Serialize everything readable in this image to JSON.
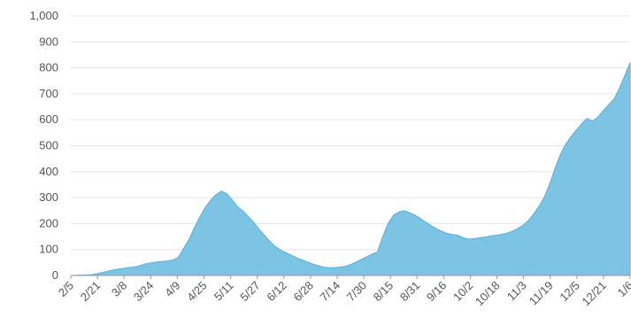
{
  "chart_data": {
    "type": "area",
    "title": "",
    "xlabel": "",
    "ylabel": "",
    "ylim": [
      0,
      1000
    ],
    "yticks": [
      0,
      100,
      200,
      300,
      400,
      500,
      600,
      700,
      800,
      900,
      1000
    ],
    "ytick_labels": [
      "0",
      "100",
      "200",
      "300",
      "400",
      "500",
      "600",
      "700",
      "800",
      "900",
      "1,000"
    ],
    "xtick_labels": [
      "2/5",
      "2/21",
      "3/8",
      "3/24",
      "4/9",
      "4/25",
      "5/11",
      "5/27",
      "6/12",
      "6/28",
      "7/14",
      "7/30",
      "8/15",
      "8/31",
      "9/16",
      "10/2",
      "10/18",
      "11/3",
      "11/19",
      "12/5",
      "12/21",
      "1/6"
    ],
    "x_index_range": [
      0,
      336
    ],
    "grid": true,
    "legend": "none",
    "colors": {
      "fill": "#7cc4e4",
      "stroke": "#55b0dc",
      "grid": "#e6e6e6",
      "axis": "#999999"
    },
    "series": [
      {
        "values": [
          [
            0,
            0
          ],
          [
            16,
            3
          ],
          [
            24,
            12
          ],
          [
            32,
            22
          ],
          [
            40,
            28
          ],
          [
            48,
            33
          ],
          [
            56,
            45
          ],
          [
            64,
            52
          ],
          [
            72,
            56
          ],
          [
            76,
            60
          ],
          [
            80,
            70
          ],
          [
            84,
            105
          ],
          [
            88,
            140
          ],
          [
            92,
            185
          ],
          [
            96,
            225
          ],
          [
            100,
            262
          ],
          [
            104,
            290
          ],
          [
            108,
            312
          ],
          [
            112,
            325
          ],
          [
            116,
            315
          ],
          [
            120,
            292
          ],
          [
            124,
            265
          ],
          [
            128,
            248
          ],
          [
            132,
            228
          ],
          [
            136,
            205
          ],
          [
            140,
            178
          ],
          [
            144,
            155
          ],
          [
            148,
            132
          ],
          [
            152,
            112
          ],
          [
            156,
            98
          ],
          [
            160,
            88
          ],
          [
            164,
            78
          ],
          [
            168,
            68
          ],
          [
            172,
            60
          ],
          [
            176,
            52
          ],
          [
            180,
            44
          ],
          [
            184,
            38
          ],
          [
            188,
            32
          ],
          [
            192,
            30
          ],
          [
            196,
            30
          ],
          [
            200,
            32
          ],
          [
            204,
            35
          ],
          [
            208,
            42
          ],
          [
            212,
            52
          ],
          [
            216,
            62
          ],
          [
            220,
            72
          ],
          [
            224,
            82
          ],
          [
            228,
            90
          ],
          [
            232,
            150
          ],
          [
            236,
            200
          ],
          [
            240,
            232
          ],
          [
            244,
            245
          ],
          [
            248,
            250
          ],
          [
            252,
            242
          ],
          [
            256,
            232
          ],
          [
            260,
            220
          ],
          [
            264,
            205
          ],
          [
            268,
            192
          ],
          [
            272,
            180
          ],
          [
            276,
            170
          ],
          [
            280,
            162
          ],
          [
            284,
            158
          ],
          [
            288,
            155
          ],
          [
            292,
            145
          ],
          [
            296,
            140
          ],
          [
            300,
            142
          ],
          [
            304,
            145
          ],
          [
            308,
            148
          ],
          [
            312,
            152
          ],
          [
            316,
            155
          ],
          [
            320,
            158
          ],
          [
            324,
            162
          ],
          [
            328,
            170
          ],
          [
            332,
            180
          ]
        ]
      }
    ],
    "tail_values": [
      [
        332,
        180
      ],
      [
        336,
        192
      ],
      [
        340,
        210
      ],
      [
        344,
        235
      ],
      [
        348,
        265
      ],
      [
        352,
        300
      ],
      [
        356,
        350
      ],
      [
        360,
        410
      ],
      [
        364,
        465
      ],
      [
        368,
        505
      ],
      [
        372,
        535
      ],
      [
        376,
        560
      ],
      [
        380,
        585
      ],
      [
        384,
        605
      ],
      [
        388,
        595
      ],
      [
        392,
        610
      ],
      [
        396,
        635
      ],
      [
        400,
        658
      ],
      [
        404,
        680
      ],
      [
        408,
        720
      ],
      [
        412,
        770
      ],
      [
        416,
        820
      ]
    ]
  }
}
